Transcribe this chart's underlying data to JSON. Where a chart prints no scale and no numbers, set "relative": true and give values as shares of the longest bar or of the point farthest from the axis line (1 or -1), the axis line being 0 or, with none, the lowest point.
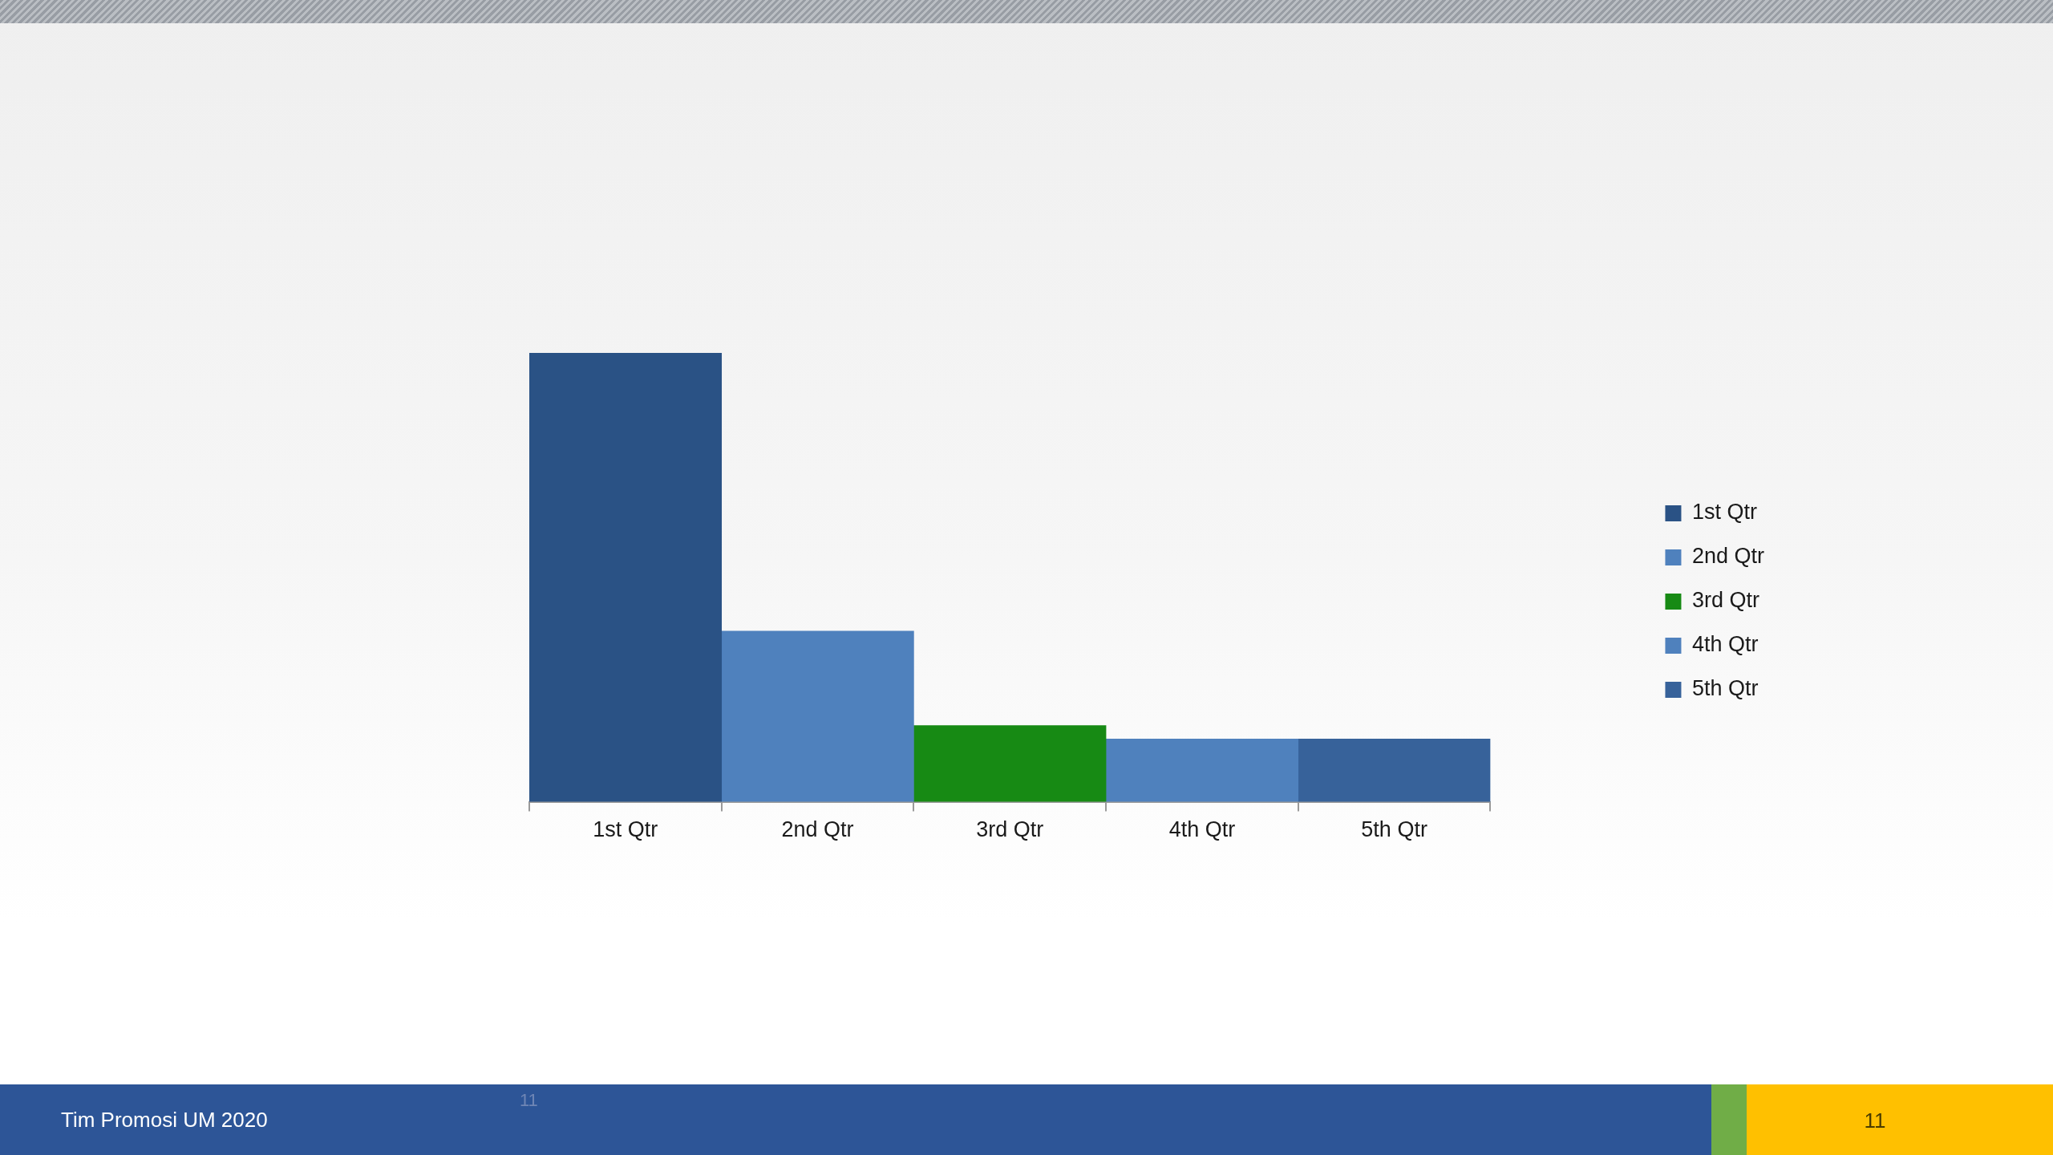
{
  "chart_data": {
    "type": "bar",
    "categories": [
      "1st Qtr",
      "2nd Qtr",
      "3rd Qtr",
      "4th Qtr",
      "5th Qtr"
    ],
    "series": [
      {
        "name": "1st Qtr",
        "color": "#2a5285",
        "values": [
          1,
          null,
          null,
          null,
          null
        ]
      },
      {
        "name": "2nd Qtr",
        "color": "#4f81bd",
        "values": [
          null,
          0.38,
          null,
          null,
          null
        ]
      },
      {
        "name": "3rd Qtr",
        "color": "#178a14",
        "values": [
          null,
          null,
          0.17,
          null,
          null
        ]
      },
      {
        "name": "4th Qtr",
        "color": "#4f81bd",
        "values": [
          null,
          null,
          null,
          0.14,
          null
        ]
      },
      {
        "name": "5th Qtr",
        "color": "#37629a",
        "values": [
          null,
          null,
          null,
          null,
          0.14
        ]
      }
    ],
    "relative": true,
    "legend": "right",
    "annotations": [
      "Tim Promosi UM 2020",
      "11",
      "11"
    ]
  }
}
